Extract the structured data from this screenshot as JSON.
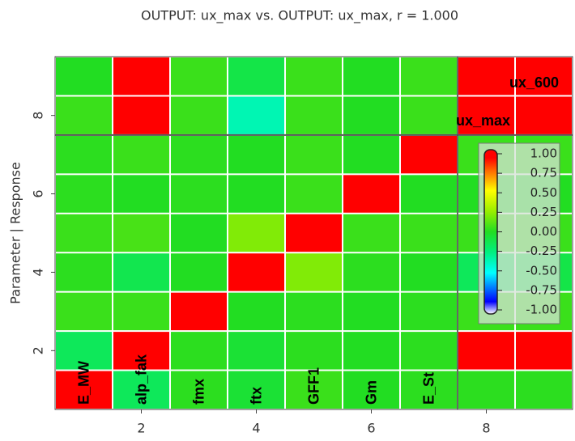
{
  "chart_data": {
    "type": "heatmap",
    "title": "OUTPUT: ux_max vs. OUTPUT: ux_max, r = 1.000",
    "ylabel": "Parameter | Response",
    "x": [
      1,
      2,
      3,
      4,
      5,
      6,
      7,
      8,
      9
    ],
    "y": [
      1,
      2,
      3,
      4,
      5,
      6,
      7,
      8,
      9
    ],
    "z": [
      [
        1.0,
        -0.15,
        0.02,
        -0.05,
        0.05,
        0.0,
        0.02,
        0.02,
        0.02
      ],
      [
        -0.15,
        1.0,
        0.02,
        -0.05,
        0.02,
        0.0,
        0.02,
        0.95,
        0.95
      ],
      [
        0.05,
        0.05,
        1.0,
        0.0,
        0.02,
        0.0,
        0.02,
        0.05,
        0.05
      ],
      [
        0.02,
        -0.12,
        0.0,
        1.0,
        0.2,
        0.02,
        0.0,
        -0.15,
        -0.1
      ],
      [
        0.05,
        0.08,
        0.0,
        0.2,
        1.0,
        0.05,
        0.05,
        0.05,
        0.05
      ],
      [
        0.02,
        0.0,
        0.02,
        0.0,
        0.05,
        1.0,
        0.0,
        0.0,
        0.0
      ],
      [
        0.02,
        0.05,
        0.02,
        0.0,
        0.05,
        0.0,
        1.0,
        0.05,
        0.05
      ],
      [
        0.05,
        0.95,
        0.05,
        -0.35,
        0.05,
        0.0,
        0.05,
        1.0,
        0.97
      ],
      [
        0.0,
        0.97,
        0.05,
        -0.1,
        0.05,
        0.0,
        0.05,
        0.97,
        1.0
      ]
    ],
    "variables": [
      "E_MW",
      "alp_fak",
      "fmx",
      "ftx",
      "GFF1",
      "Gm",
      "E_St",
      "ux_max",
      "ux_600"
    ],
    "split": 7.5,
    "xlim": [
      0.5,
      9.5
    ],
    "ylim": [
      0.5,
      9.5
    ],
    "xticks": [
      2,
      4,
      6,
      8
    ],
    "yticks": [
      2,
      4,
      6,
      8
    ],
    "colorscale": [
      [
        -1,
        "#ffffff"
      ],
      [
        -0.85,
        "#0000ff"
      ],
      [
        -0.5,
        "#00ffff"
      ],
      [
        -0.25,
        "#00f080"
      ],
      [
        0,
        "#22dd22"
      ],
      [
        0.25,
        "#99ee00"
      ],
      [
        0.5,
        "#ffff00"
      ],
      [
        0.75,
        "#ff6600"
      ],
      [
        0.9,
        "#ff0000"
      ],
      [
        1,
        "#ff0000"
      ]
    ],
    "clim": [
      -1,
      1
    ],
    "colorbar_ticks": [
      {
        "value": 1,
        "label": "1.00"
      },
      {
        "value": 0.75,
        "label": "0.75"
      },
      {
        "value": 0.5,
        "label": "0.50"
      },
      {
        "value": 0.25,
        "label": "0.25"
      },
      {
        "value": 0,
        "label": "0.00"
      },
      {
        "value": -0.25,
        "label": "-0.25"
      },
      {
        "value": -0.5,
        "label": "-0.50"
      },
      {
        "value": -0.75,
        "label": "-0.75"
      },
      {
        "value": -1,
        "label": "-1.00"
      }
    ]
  }
}
